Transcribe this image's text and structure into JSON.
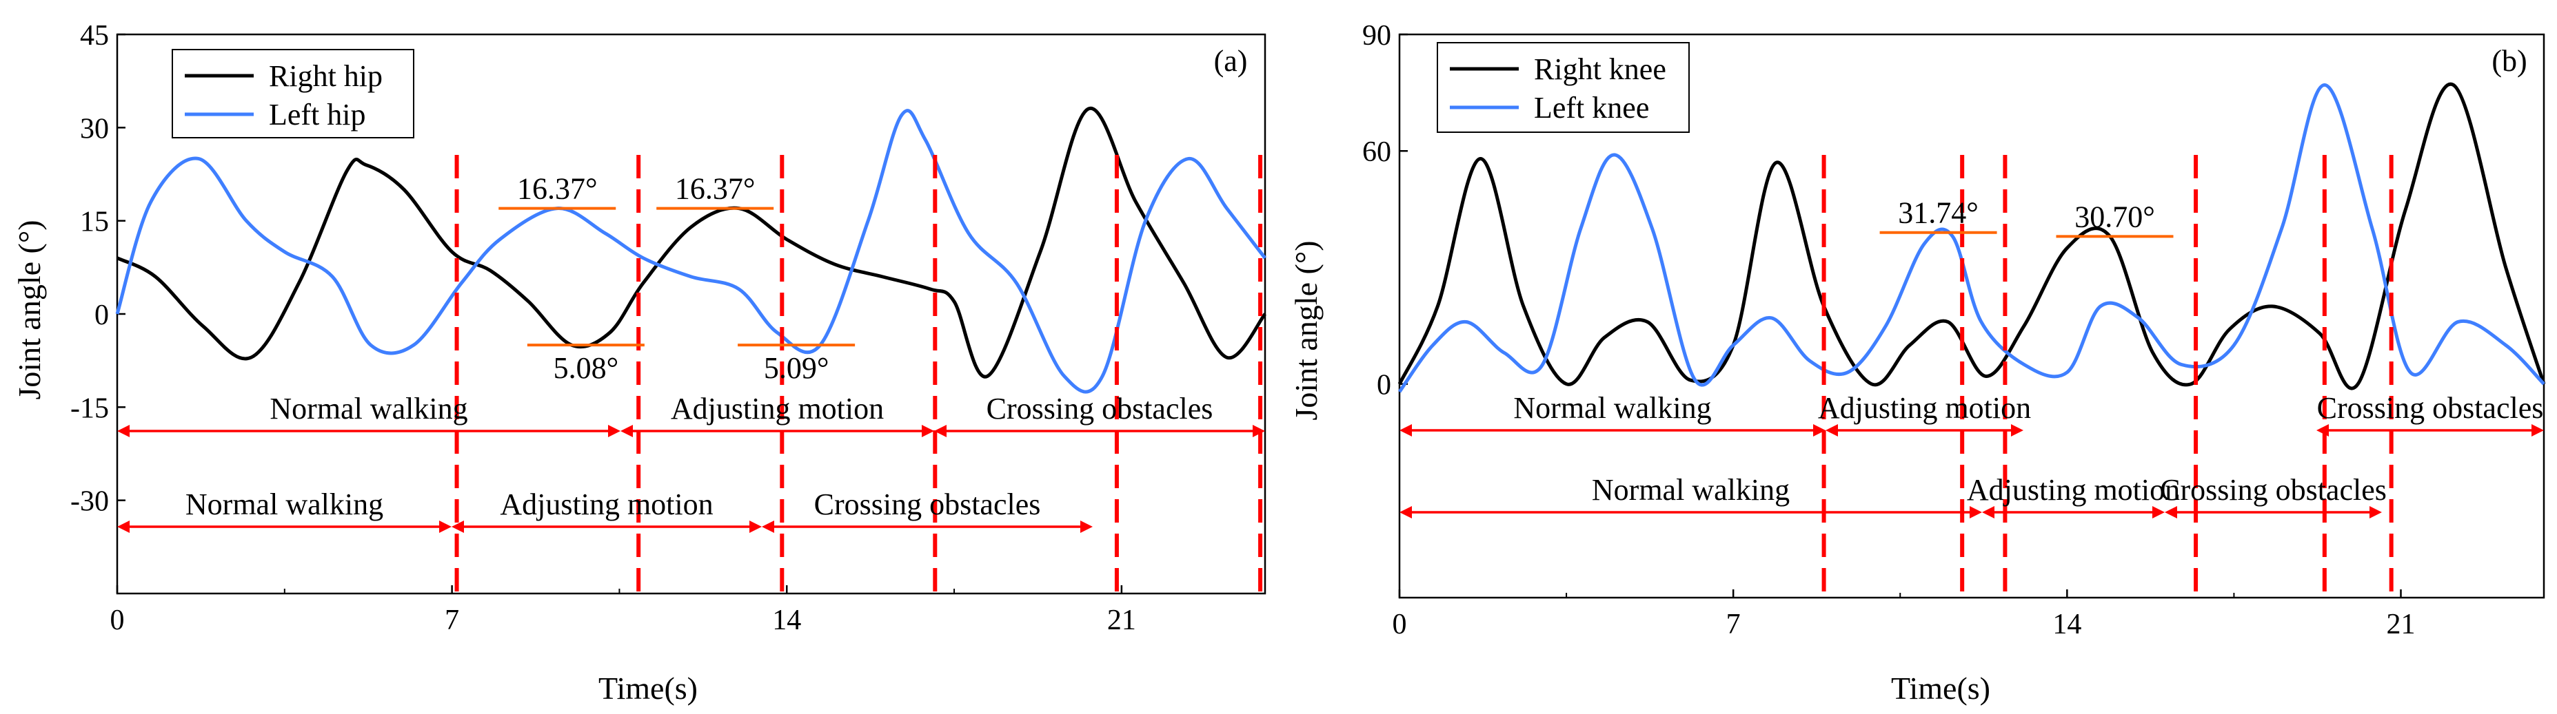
{
  "chart_data": [
    {
      "type": "line",
      "panel_label": "(a)",
      "xlabel": "Time(s)",
      "ylabel": "Joint angle (°)",
      "xlim": [
        0,
        24
      ],
      "ylim": [
        -45,
        45
      ],
      "xticks": [
        0,
        7,
        14,
        21
      ],
      "yticks": [
        -30,
        -15,
        0,
        15,
        30,
        45
      ],
      "legend_position": "top-left",
      "colors": {
        "series1": "#000000",
        "series2": "#3f7fff",
        "markers": "#ff0000",
        "annot": "#ff6600"
      },
      "series": [
        {
          "name": "Right hip",
          "x": [
            0,
            0.8,
            1.8,
            2.8,
            3.8,
            4.8,
            5.2,
            6.0,
            7.0,
            7.8,
            8.6,
            9.5,
            10.3,
            11.0,
            12.0,
            13.0,
            14.0,
            15.0,
            16.0,
            17.0,
            17.5,
            18.2,
            19.3,
            20.3,
            21.3,
            22.3,
            23.2,
            24.0
          ],
          "y": [
            9,
            6,
            -2,
            -7,
            5,
            23,
            24,
            20,
            10,
            7,
            2,
            -5,
            -3,
            5,
            14,
            17,
            12,
            8,
            6,
            4,
            2,
            -10,
            10,
            33,
            18,
            5,
            -7,
            0
          ]
        },
        {
          "name": "Left hip",
          "x": [
            0,
            0.7,
            1.7,
            2.7,
            3.5,
            4.5,
            5.3,
            6.2,
            7.2,
            8.0,
            9.2,
            10.2,
            11.0,
            12.0,
            13.0,
            13.8,
            14.7,
            15.7,
            16.4,
            16.9,
            17.8,
            18.8,
            19.8,
            20.6,
            21.5,
            22.4,
            23.2,
            24.0
          ],
          "y": [
            0,
            18,
            25,
            15,
            10,
            6,
            -5,
            -5,
            5,
            12,
            17,
            13,
            9,
            6,
            4,
            -3,
            -5,
            15,
            32,
            28,
            13,
            5,
            -10,
            -10,
            15,
            25,
            17,
            9
          ]
        }
      ],
      "vlines": [
        7.1,
        10.9,
        13.9,
        17.1,
        20.9,
        23.9
      ],
      "annotations": [
        {
          "text": "16.37°",
          "x": 9.2,
          "y": 17
        },
        {
          "text": "16.37°",
          "x": 12.5,
          "y": 17
        },
        {
          "text": "5.08°",
          "x": 9.8,
          "y": -5
        },
        {
          "text": "5.09°",
          "x": 14.2,
          "y": -5
        }
      ],
      "phases_upper": [
        "Normal walking",
        "Adjusting motion",
        "Crossing obstacles"
      ],
      "phases_lower": [
        "Normal walking",
        "Adjusting motion",
        "Crossing obstacles"
      ]
    },
    {
      "type": "line",
      "panel_label": "(b)",
      "xlabel": "Time(s)",
      "ylabel": "Joint angle (°)",
      "xlim": [
        0,
        24
      ],
      "ylim": [
        -55,
        90
      ],
      "xticks": [
        0,
        7,
        14,
        21
      ],
      "yticks": [
        0,
        60,
        90
      ],
      "legend_position": "top-left",
      "colors": {
        "series1": "#000000",
        "series2": "#3f7fff",
        "markers": "#ff0000",
        "annot": "#ff6600"
      },
      "series": [
        {
          "name": "Right knee",
          "x": [
            0,
            0.8,
            1.7,
            2.6,
            3.5,
            4.3,
            5.2,
            6.1,
            7.0,
            7.9,
            8.9,
            9.9,
            10.7,
            11.5,
            12.3,
            13.1,
            14.0,
            14.9,
            15.8,
            16.6,
            17.4,
            18.3,
            19.3,
            20.1,
            21.1,
            22.1,
            23.2,
            24.0
          ],
          "y": [
            0,
            20,
            58,
            20,
            0,
            12,
            16,
            1,
            10,
            57,
            20,
            0,
            10,
            16,
            2,
            15,
            35,
            38,
            8,
            0,
            14,
            20,
            13,
            0,
            45,
            77,
            30,
            0
          ]
        },
        {
          "name": "Left knee",
          "x": [
            0,
            0.7,
            1.4,
            2.2,
            3.0,
            3.8,
            4.5,
            5.3,
            6.2,
            7.0,
            7.8,
            8.6,
            9.4,
            10.2,
            11.0,
            11.6,
            12.2,
            13.1,
            14.0,
            14.7,
            15.5,
            16.4,
            17.5,
            18.5,
            19.4,
            20.4,
            21.2,
            22.2,
            23.2,
            24.0
          ],
          "y": [
            -2,
            10,
            16,
            8,
            5,
            40,
            59,
            40,
            1,
            10,
            17,
            6,
            3,
            15,
            36,
            38,
            16,
            5,
            3,
            20,
            17,
            5,
            10,
            40,
            77,
            40,
            3,
            16,
            10,
            0
          ]
        }
      ],
      "vlines": [
        8.9,
        11.8,
        12.7,
        16.7,
        19.4,
        20.8
      ],
      "annotations": [
        {
          "text": "31.74°",
          "x": 11.3,
          "y": 39
        },
        {
          "text": "30.70°",
          "x": 15.0,
          "y": 38
        }
      ],
      "phases_upper": [
        "Normal walking",
        "Adjusting motion",
        "Crossing obstacles"
      ],
      "phases_lower": [
        "Normal walking",
        "Adjusting motion",
        "Crossing obstacles"
      ]
    }
  ]
}
